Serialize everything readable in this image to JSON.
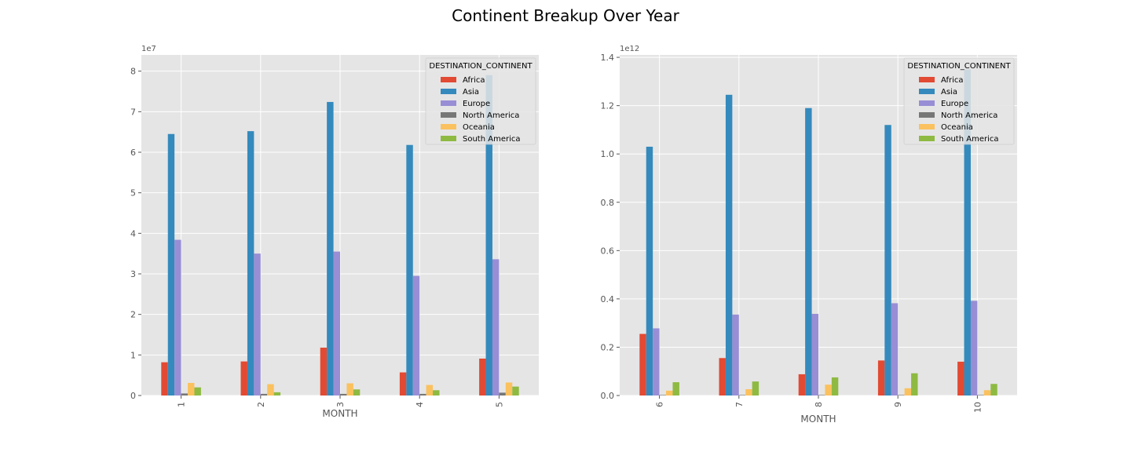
{
  "figure": {
    "title": "Continent Breakup Over Year"
  },
  "colors": {
    "Africa": "#E24A33",
    "Asia": "#348ABD",
    "Europe": "#988ED5",
    "North America": "#777777",
    "Oceania": "#FBC15E",
    "South America": "#8EBA42"
  },
  "chart_data": [
    {
      "type": "bar",
      "title": "",
      "xlabel": "MONTH",
      "ylabel": "",
      "offset_label": "1e7",
      "categories": [
        "1",
        "2",
        "3",
        "4",
        "5"
      ],
      "series": [
        {
          "name": "Africa",
          "values": [
            0.82,
            0.84,
            1.18,
            0.57,
            0.91
          ]
        },
        {
          "name": "Asia",
          "values": [
            6.45,
            6.52,
            7.24,
            6.18,
            7.9
          ]
        },
        {
          "name": "Europe",
          "values": [
            3.84,
            3.5,
            3.55,
            2.95,
            3.36
          ]
        },
        {
          "name": "North America",
          "values": [
            0.05,
            0.04,
            0.04,
            0.04,
            0.07
          ]
        },
        {
          "name": "Oceania",
          "values": [
            0.31,
            0.28,
            0.3,
            0.26,
            0.32
          ]
        },
        {
          "name": "South America",
          "values": [
            0.2,
            0.08,
            0.15,
            0.13,
            0.22
          ]
        }
      ],
      "ylim": [
        0,
        8.4
      ],
      "yticks": [
        "0",
        "1",
        "2",
        "3",
        "4",
        "5",
        "6",
        "7",
        "8"
      ],
      "ytick_values": [
        0,
        1,
        2,
        3,
        4,
        5,
        6,
        7,
        8
      ],
      "legend": {
        "title": "DESTINATION_CONTINENT",
        "position": "top-right"
      },
      "grid": true
    },
    {
      "type": "bar",
      "title": "",
      "xlabel": "MONTH",
      "ylabel": "",
      "offset_label": "1e12",
      "categories": [
        "6",
        "7",
        "8",
        "9",
        "10"
      ],
      "series": [
        {
          "name": "Africa",
          "values": [
            0.255,
            0.155,
            0.088,
            0.145,
            0.14
          ]
        },
        {
          "name": "Asia",
          "values": [
            1.03,
            1.245,
            1.19,
            1.12,
            1.35
          ]
        },
        {
          "name": "Europe",
          "values": [
            0.278,
            0.335,
            0.338,
            0.382,
            0.392
          ]
        },
        {
          "name": "North America",
          "values": [
            0.002,
            0.002,
            0.002,
            0.002,
            0.002
          ]
        },
        {
          "name": "Oceania",
          "values": [
            0.02,
            0.026,
            0.045,
            0.03,
            0.022
          ]
        },
        {
          "name": "South America",
          "values": [
            0.055,
            0.058,
            0.075,
            0.092,
            0.048
          ]
        }
      ],
      "ylim": [
        0,
        1.41
      ],
      "yticks": [
        "0.0",
        "0.2",
        "0.4",
        "0.6",
        "0.8",
        "1.0",
        "1.2",
        "1.4"
      ],
      "ytick_values": [
        0,
        0.2,
        0.4,
        0.6,
        0.8,
        1.0,
        1.2,
        1.4
      ],
      "legend": {
        "title": "DESTINATION_CONTINENT",
        "position": "top-right"
      },
      "grid": true
    }
  ]
}
